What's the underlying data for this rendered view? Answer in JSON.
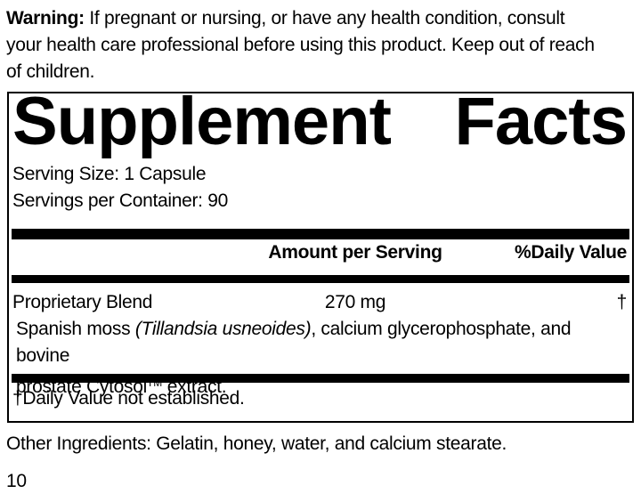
{
  "warning": {
    "label": "Warning:",
    "text": " If pregnant or nursing, or have any health condition, consult\nyour health care professional before using this product. Keep out of reach\nof children."
  },
  "panel": {
    "title_left": "Supplement",
    "title_right": "Facts",
    "serving_size": "Serving Size: 1 Capsule",
    "servings_per_container": "Servings per Container: 90",
    "header": {
      "amount": "Amount per Serving",
      "daily_value": "%Daily Value"
    },
    "rows": [
      {
        "name": "Proprietary Blend",
        "amount": "270 mg",
        "daily_value": "†"
      }
    ],
    "blend_description": {
      "part1": "Spanish moss ",
      "latin_italic": "(Tillandsia usneoides)",
      "part2": ", calcium glycerophosphate, and bovine\nprostate Cytosol",
      "trademark": "TM",
      "part3": " extract."
    },
    "footnote": "†Daily Value not established."
  },
  "other_ingredients": "Other Ingredients: Gelatin, honey, water, and calcium stearate.",
  "page_number": "10",
  "colors": {
    "ink": "#000000",
    "background": "#ffffff"
  }
}
